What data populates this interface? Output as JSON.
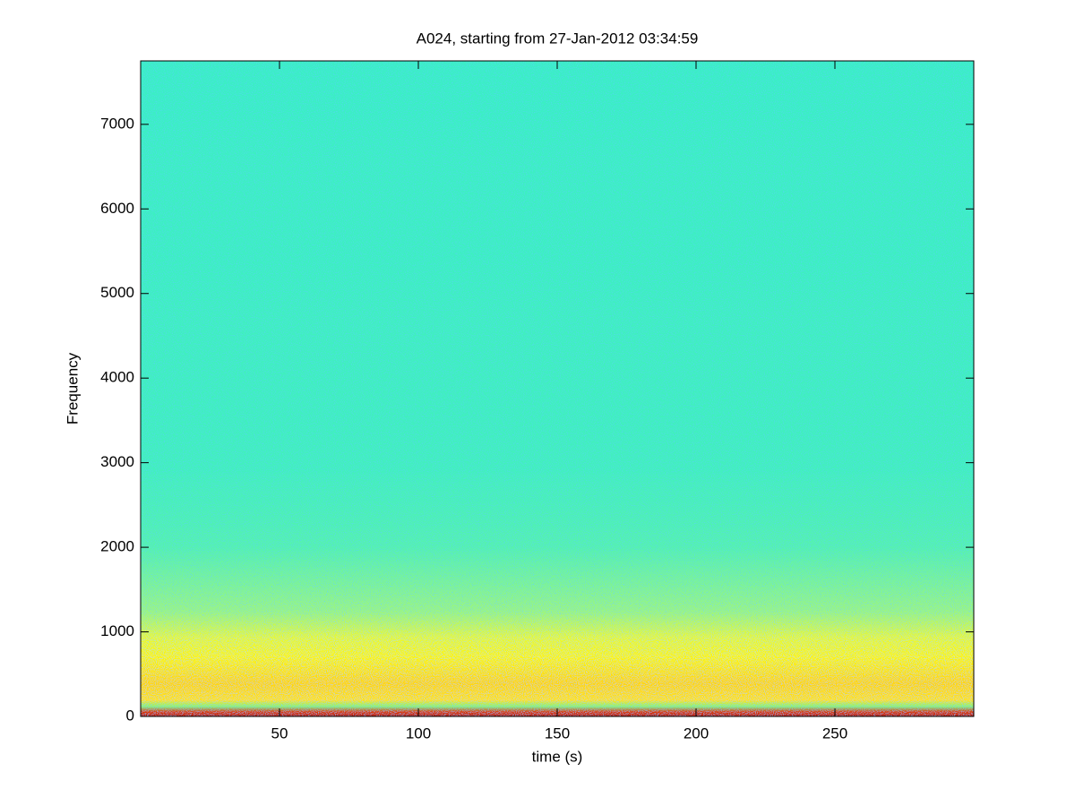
{
  "chart_data": {
    "type": "spectrogram",
    "title": "A024, starting from 27-Jan-2012 03:34:59",
    "x_label": "time (s)",
    "y_label": "Frequency",
    "xlim": [
      0,
      300
    ],
    "xticks": [
      50,
      100,
      150,
      200,
      250
    ],
    "ylim": [
      0,
      7750
    ],
    "yticks": [
      0,
      1000,
      2000,
      3000,
      4000,
      5000,
      6000,
      7000
    ],
    "grid": false
  }
}
